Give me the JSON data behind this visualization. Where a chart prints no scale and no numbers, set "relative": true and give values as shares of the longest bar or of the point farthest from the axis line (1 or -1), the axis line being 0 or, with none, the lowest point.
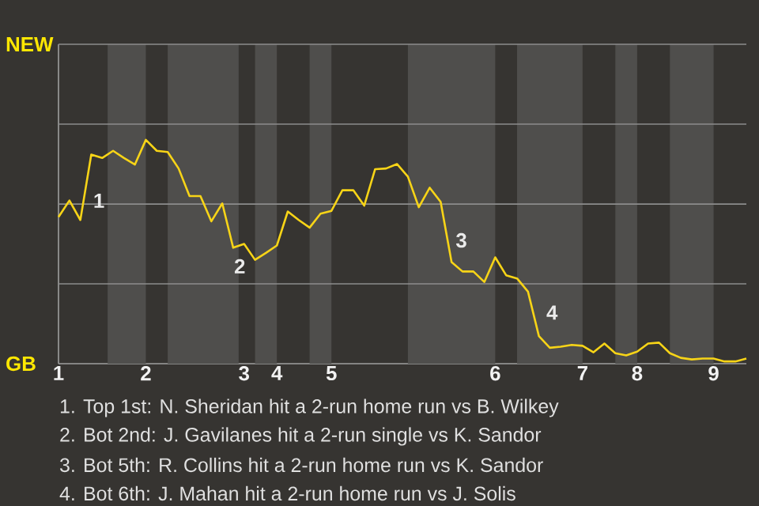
{
  "chart_data": {
    "type": "line",
    "relative": true,
    "categories": [
      "1",
      null,
      null,
      null,
      null,
      null,
      null,
      null,
      "2",
      null,
      null,
      null,
      null,
      null,
      null,
      null,
      null,
      "3",
      null,
      null,
      "4",
      null,
      null,
      null,
      null,
      "5",
      null,
      null,
      null,
      null,
      null,
      null,
      null,
      null,
      null,
      null,
      null,
      null,
      null,
      null,
      "6",
      null,
      null,
      null,
      null,
      null,
      null,
      null,
      "7",
      null,
      null,
      null,
      null,
      "8",
      null,
      null,
      null,
      null,
      null,
      null,
      "9",
      null,
      null,
      null
    ],
    "series": [
      {
        "color": "#f7d417",
        "values": [
          0.655,
          0.729,
          0.642,
          0.934,
          0.919,
          0.951,
          0.919,
          0.89,
          1,
          0.951,
          0.946,
          0.872,
          0.749,
          0.749,
          0.636,
          0.716,
          0.518,
          0.535,
          0.464,
          0.495,
          0.528,
          0.68,
          0.642,
          0.608,
          0.67,
          0.683,
          0.775,
          0.775,
          0.706,
          0.869,
          0.872,
          0.892,
          0.836,
          0.699,
          0.786,
          0.723,
          0.454,
          0.412,
          0.412,
          0.365,
          0.475,
          0.395,
          0.381,
          0.322,
          0.123,
          0.071,
          0.076,
          0.084,
          0.08,
          0.051,
          0.09,
          0.047,
          0.037,
          0.054,
          0.09,
          0.094,
          0.047,
          0.026,
          0.019,
          0.023,
          0.023,
          0.01,
          0.01,
          0.023
        ]
      }
    ],
    "ref_lines": [
      {
        "axis": "y",
        "value": 0.357,
        "color": "#8c8c8c"
      },
      {
        "axis": "y",
        "value": 0.713,
        "color": "#8c8c8c"
      },
      {
        "axis": "y",
        "value": 1.07,
        "color": "#8c8c8c"
      }
    ],
    "annotations": [
      "NEW",
      "GB",
      "1",
      "2",
      "3",
      "4",
      "1. Top 1st: N. Sheridan hit a 2-run home run vs B. Wilkey",
      "2. Bot 2nd: J. Gavilanes hit a 2-run single vs K. Sandor",
      "3. Bot 5th: R. Collins hit a 2-run home run vs K. Sandor",
      "4. Bot 6th: J. Mahan hit a 2-run home run vs J. Solis"
    ]
  }
}
